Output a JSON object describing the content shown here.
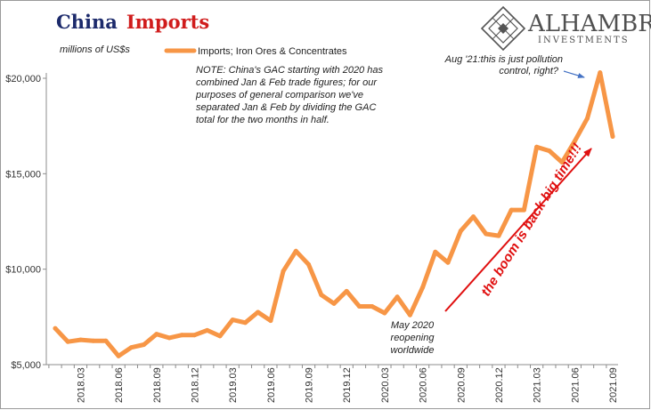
{
  "title": {
    "part1": "China",
    "part2": "Imports",
    "part1_color": "#1c2a6b",
    "part2_color": "#d01c1c"
  },
  "logo": {
    "name": "ALHAMBRA",
    "tagline": "INVESTMENTS"
  },
  "chart_data": {
    "type": "line",
    "unit_label": "millions of US$s",
    "legend_placement": "top-left",
    "grid": false,
    "ylim": [
      5000,
      21000
    ],
    "y_ticks": [
      5000,
      10000,
      15000,
      20000
    ],
    "y_tick_labels": [
      "$5,000",
      "$10,000",
      "$15,000",
      "$20,000"
    ],
    "x_ticks": [
      {
        "index": 2,
        "label": "2018.03"
      },
      {
        "index": 5,
        "label": "2018.06"
      },
      {
        "index": 8,
        "label": "2018.09"
      },
      {
        "index": 11,
        "label": "2018.12"
      },
      {
        "index": 14,
        "label": "2019.03"
      },
      {
        "index": 17,
        "label": "2019.06"
      },
      {
        "index": 20,
        "label": "2019.09"
      },
      {
        "index": 23,
        "label": "2019.12"
      },
      {
        "index": 26,
        "label": "2020.03"
      },
      {
        "index": 29,
        "label": "2020.06"
      },
      {
        "index": 32,
        "label": "2020.09"
      },
      {
        "index": 35,
        "label": "2020.12"
      },
      {
        "index": 38,
        "label": "2021.03"
      },
      {
        "index": 41,
        "label": "2021.06"
      },
      {
        "index": 44,
        "label": "2021.09"
      }
    ],
    "series": [
      {
        "name": "Imports; Iron Ores & Concentrates",
        "color": "#f79646",
        "values": [
          6900,
          6200,
          6300,
          6250,
          6250,
          5450,
          5900,
          6050,
          6600,
          6400,
          6550,
          6550,
          6800,
          6500,
          7350,
          7200,
          7750,
          7300,
          9900,
          10950,
          10250,
          8650,
          8200,
          8850,
          8050,
          8050,
          7700,
          8550,
          7600,
          9050,
          10900,
          10350,
          12000,
          12750,
          11850,
          11750,
          13100,
          13100,
          16400,
          16200,
          15600,
          16700,
          17900,
          20300,
          16950
        ]
      }
    ]
  },
  "note": {
    "lines": [
      "NOTE: China's GAC starting with 2020 has",
      "combined Jan & Feb trade figures; for our",
      "purposes of general comparison we've",
      "separated Jan & Feb by dividing the GAC",
      "total for the two months in half."
    ]
  },
  "annotations": {
    "aug21_lines": [
      "Aug '21:this is just pollution",
      "control, right?"
    ],
    "may2020_lines": [
      "May 2020",
      "reopening",
      "worldwide"
    ],
    "boom_text": "the boom is back big time!!!",
    "boom_color": "#e01010",
    "arrow_color": "#e01010",
    "aug_arrow_color": "#4472c4"
  }
}
